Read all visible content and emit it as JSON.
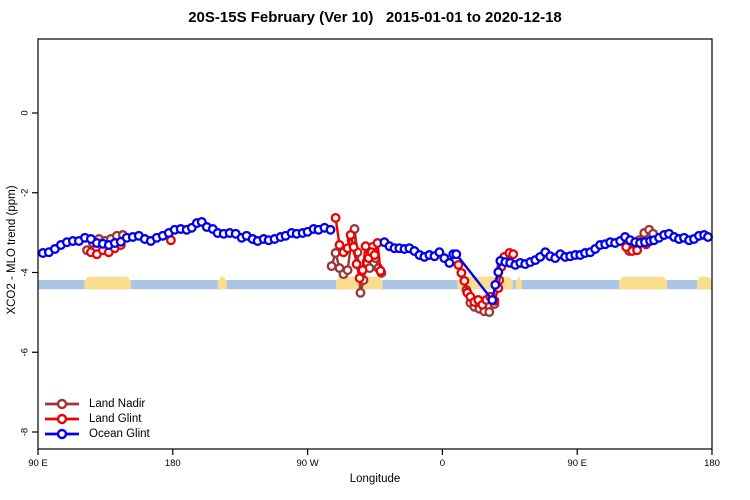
{
  "chart_data": {
    "type": "line-scatter",
    "title": "20S-15S February (Ver 10)   2015-01-01 to 2020-12-18",
    "xlabel": "Longitude",
    "ylabel": "XCO2 - MLO trend (ppm)",
    "grid": false,
    "x_axis": {
      "range": [
        0,
        450
      ],
      "ticks": [
        {
          "offset": 0,
          "label": "90 E"
        },
        {
          "offset": 90,
          "label": "180"
        },
        {
          "offset": 180,
          "label": "90 W"
        },
        {
          "offset": 270,
          "label": "0"
        },
        {
          "offset": 360,
          "label": "90 E"
        },
        {
          "offset": 450,
          "label": "180"
        }
      ]
    },
    "y_axis": {
      "range": [
        -8.43,
        1.86
      ],
      "ticks": [
        {
          "value": 0,
          "label": "0"
        },
        {
          "value": -2,
          "label": "-2"
        },
        {
          "value": -4,
          "label": "-4"
        },
        {
          "value": -6,
          "label": "-6"
        },
        {
          "value": -8,
          "label": "-8"
        }
      ]
    },
    "band": {
      "ocean_color": "#a9c4e4",
      "land_color": "#fbdd8f",
      "value_top": -4.19,
      "value_bottom": -4.42,
      "land_segments": [
        [
          31,
          62
        ],
        [
          120,
          126
        ],
        [
          199,
          230
        ],
        [
          280,
          317
        ],
        [
          319,
          323
        ],
        [
          388,
          420
        ],
        [
          440,
          450
        ]
      ]
    },
    "legend": {
      "position": "bottom-left",
      "entries": [
        {
          "label": "Land Nadir",
          "color": "#9c3535"
        },
        {
          "label": "Land Glint",
          "color": "#ee0000"
        },
        {
          "label": "Ocean Glint",
          "color": "#0000ee"
        }
      ]
    },
    "series": [
      {
        "name": "Land Nadir",
        "color": "#9c3535",
        "paths": [
          [
            [
              32.7,
              -3.44
            ],
            [
              36.7,
              -3.26
            ],
            [
              40.7,
              -3.16
            ],
            [
              44.7,
              -3.21
            ],
            [
              48.7,
              -3.16
            ],
            [
              52.7,
              -3.08
            ],
            [
              56.7,
              -3.06
            ]
          ],
          [
            [
              196,
              -3.84
            ],
            [
              198.7,
              -3.51
            ],
            [
              201.3,
              -3.89
            ],
            [
              204,
              -4.04
            ],
            [
              206.7,
              -3.94
            ],
            [
              209.3,
              -3.19
            ],
            [
              211.3,
              -2.91
            ],
            [
              213.3,
              -3.49
            ],
            [
              215.3,
              -4.51
            ],
            [
              217.3,
              -4.19
            ],
            [
              219.3,
              -3.74
            ],
            [
              221.3,
              -3.89
            ],
            [
              223.3,
              -3.36
            ],
            [
              225.3,
              -3.64
            ],
            [
              227.3,
              -3.89
            ],
            [
              229.3,
              -4.01
            ]
          ],
          [
            [
              286,
              -4.44
            ],
            [
              288.7,
              -4.76
            ],
            [
              291.3,
              -4.86
            ],
            [
              294.7,
              -4.91
            ],
            [
              298,
              -4.97
            ],
            [
              301.3,
              -4.99
            ],
            [
              304.7,
              -4.79
            ],
            [
              308,
              -4.19
            ],
            [
              310,
              -3.74
            ]
          ],
          [
            [
              394.7,
              -3.46
            ],
            [
              398.7,
              -3.29
            ],
            [
              401.3,
              -3.19
            ],
            [
              404.7,
              -3.01
            ],
            [
              408,
              -2.93
            ],
            [
              410.7,
              -3.03
            ]
          ]
        ]
      },
      {
        "name": "Land Glint",
        "color": "#ee0000",
        "paths": [
          [
            [
              35.3,
              -3.49
            ],
            [
              39.3,
              -3.54
            ],
            [
              43.3,
              -3.44
            ],
            [
              47.3,
              -3.49
            ],
            [
              51.3,
              -3.39
            ],
            [
              55.3,
              -3.31
            ]
          ],
          [
            [
              88.7,
              -3.19
            ]
          ],
          [
            [
              198.7,
              -2.63
            ],
            [
              201.3,
              -3.31
            ],
            [
              204,
              -3.49
            ],
            [
              206.7,
              -3.39
            ],
            [
              208.7,
              -3.06
            ],
            [
              210.7,
              -3.36
            ],
            [
              212.7,
              -3.79
            ],
            [
              214.7,
              -4.14
            ],
            [
              216.7,
              -3.94
            ],
            [
              218.7,
              -3.34
            ],
            [
              220.7,
              -3.64
            ],
            [
              222.7,
              -3.49
            ],
            [
              224.7,
              -3.56
            ],
            [
              226.7,
              -3.26
            ],
            [
              228.7,
              -3.96
            ]
          ],
          [
            [
              280.7,
              -3.81
            ],
            [
              282.7,
              -4.01
            ],
            [
              284.7,
              -4.21
            ],
            [
              286.7,
              -4.51
            ],
            [
              288.7,
              -4.61
            ],
            [
              291.3,
              -4.74
            ],
            [
              294,
              -4.69
            ],
            [
              296.7,
              -4.81
            ],
            [
              299.3,
              -4.69
            ],
            [
              302,
              -4.61
            ],
            [
              304.7,
              -4.71
            ],
            [
              307.3,
              -4.39
            ],
            [
              309.3,
              -3.86
            ],
            [
              311.3,
              -3.61
            ],
            [
              314.7,
              -3.51
            ],
            [
              317.3,
              -3.54
            ]
          ],
          [
            [
              392.7,
              -3.36
            ],
            [
              396.7,
              -3.46
            ],
            [
              400,
              -3.44
            ],
            [
              402.7,
              -3.24
            ],
            [
              406,
              -3.29
            ]
          ]
        ]
      },
      {
        "name": "Ocean Glint",
        "color": "#0000ee",
        "paths": [
          [
            [
              3.3,
              -3.51
            ],
            [
              7.3,
              -3.49
            ],
            [
              11.3,
              -3.41
            ],
            [
              15.3,
              -3.31
            ],
            [
              19.3,
              -3.24
            ],
            [
              23.3,
              -3.21
            ],
            [
              27.3,
              -3.21
            ],
            [
              31.3,
              -3.13
            ],
            [
              35.3,
              -3.16
            ],
            [
              39.3,
              -3.26
            ],
            [
              43.3,
              -3.28
            ],
            [
              47.3,
              -3.31
            ],
            [
              51.3,
              -3.26
            ],
            [
              55.3,
              -3.23
            ],
            [
              59.3,
              -3.13
            ],
            [
              63.3,
              -3.11
            ],
            [
              67.3,
              -3.08
            ],
            [
              71.3,
              -3.16
            ],
            [
              75.3,
              -3.21
            ],
            [
              79.3,
              -3.13
            ],
            [
              83.3,
              -3.08
            ],
            [
              87.3,
              -3.01
            ],
            [
              91.3,
              -2.93
            ],
            [
              95.3,
              -2.91
            ],
            [
              99.3,
              -2.93
            ],
            [
              102.7,
              -2.88
            ],
            [
              106,
              -2.76
            ],
            [
              109.3,
              -2.73
            ],
            [
              112.7,
              -2.86
            ],
            [
              116.7,
              -2.91
            ],
            [
              120,
              -3.01
            ],
            [
              124,
              -3.03
            ],
            [
              128,
              -3.01
            ],
            [
              132,
              -3.03
            ],
            [
              136,
              -3.13
            ],
            [
              139.3,
              -3.08
            ],
            [
              143.3,
              -3.16
            ],
            [
              146.7,
              -3.21
            ],
            [
              150.7,
              -3.16
            ],
            [
              154,
              -3.19
            ],
            [
              158,
              -3.16
            ],
            [
              162,
              -3.11
            ],
            [
              165.3,
              -3.08
            ],
            [
              169.3,
              -3.01
            ],
            [
              172.7,
              -3.03
            ],
            [
              176.7,
              -3.01
            ],
            [
              180,
              -2.98
            ],
            [
              184,
              -2.91
            ],
            [
              187.3,
              -2.93
            ],
            [
              191.3,
              -2.88
            ],
            [
              195.3,
              -2.93
            ]
          ],
          [
            [
              231.3,
              -3.24
            ],
            [
              234.7,
              -3.34
            ],
            [
              238,
              -3.39
            ],
            [
              241.3,
              -3.39
            ],
            [
              244.7,
              -3.41
            ],
            [
              248,
              -3.39
            ],
            [
              251.3,
              -3.46
            ],
            [
              254.7,
              -3.56
            ],
            [
              258,
              -3.61
            ],
            [
              261.3,
              -3.56
            ],
            [
              264.7,
              -3.59
            ],
            [
              268,
              -3.49
            ],
            [
              271.3,
              -3.64
            ],
            [
              274.7,
              -3.76
            ],
            [
              277.3,
              -3.54
            ],
            [
              279.3,
              -3.54
            ],
            [
              303.3,
              -4.69
            ],
            [
              305.3,
              -4.31
            ],
            [
              307.3,
              -3.99
            ],
            [
              308.7,
              -3.71
            ],
            [
              312,
              -3.74
            ],
            [
              315.3,
              -3.76
            ],
            [
              318.7,
              -3.81
            ],
            [
              322,
              -3.76
            ],
            [
              325.3,
              -3.79
            ],
            [
              328.7,
              -3.74
            ],
            [
              332,
              -3.69
            ],
            [
              335.3,
              -3.61
            ],
            [
              338.7,
              -3.49
            ],
            [
              342,
              -3.59
            ],
            [
              345.3,
              -3.64
            ],
            [
              348.7,
              -3.54
            ],
            [
              352,
              -3.61
            ],
            [
              355.3,
              -3.59
            ],
            [
              358.7,
              -3.56
            ],
            [
              362,
              -3.56
            ],
            [
              365.3,
              -3.51
            ],
            [
              368.7,
              -3.49
            ],
            [
              372,
              -3.41
            ],
            [
              375.3,
              -3.31
            ],
            [
              378.7,
              -3.29
            ],
            [
              382,
              -3.24
            ],
            [
              385.3,
              -3.26
            ],
            [
              388.7,
              -3.21
            ],
            [
              392,
              -3.11
            ],
            [
              395.3,
              -3.19
            ],
            [
              398.7,
              -3.24
            ],
            [
              402,
              -3.26
            ],
            [
              405.3,
              -3.24
            ],
            [
              408.7,
              -3.21
            ],
            [
              411.3,
              -3.19
            ],
            [
              414.7,
              -3.13
            ],
            [
              418,
              -3.06
            ],
            [
              421.3,
              -3.03
            ],
            [
              424.7,
              -3.11
            ],
            [
              428,
              -3.16
            ],
            [
              431.3,
              -3.13
            ],
            [
              434.7,
              -3.19
            ],
            [
              438,
              -3.16
            ],
            [
              441.3,
              -3.08
            ],
            [
              444.7,
              -3.06
            ],
            [
              447.3,
              -3.11
            ]
          ]
        ]
      }
    ]
  }
}
